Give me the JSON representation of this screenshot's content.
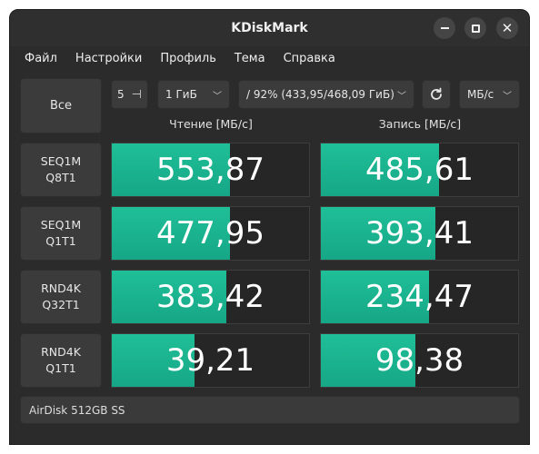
{
  "window": {
    "title": "KDiskMark"
  },
  "menu": {
    "items": [
      "Файл",
      "Настройки",
      "Профиль",
      "Тема",
      "Справка"
    ]
  },
  "toolbar": {
    "all_button": "Все",
    "runs": "5",
    "size": "1 ГиБ",
    "drive": "/ 92% (433,95/468,09 ГиБ)",
    "units": "МБ/с"
  },
  "columns": {
    "read": "Чтение [МБ/с]",
    "write": "Запись [МБ/с]"
  },
  "tests": [
    {
      "name": "SEQ1M",
      "params": "Q8T1",
      "read": "553,87",
      "write": "485,61",
      "read_fill": 0.6,
      "write_fill": 0.6
    },
    {
      "name": "SEQ1M",
      "params": "Q1T1",
      "read": "477,95",
      "write": "393,41",
      "read_fill": 0.6,
      "write_fill": 0.58
    },
    {
      "name": "RND4K",
      "params": "Q32T1",
      "read": "383,42",
      "write": "234,47",
      "read_fill": 0.58,
      "write_fill": 0.55
    },
    {
      "name": "RND4K",
      "params": "Q1T1",
      "read": "39,21",
      "write": "98,38",
      "read_fill": 0.42,
      "write_fill": 0.48
    }
  ],
  "footer": {
    "drive_info": "AirDisk 512GB SS"
  },
  "colors": {
    "accent": "#1dbb94",
    "background": "#2b2b2b",
    "cell_bg": "#262626"
  },
  "icons": {
    "refresh": "refresh-icon",
    "chevron": "chevron-down-icon"
  }
}
